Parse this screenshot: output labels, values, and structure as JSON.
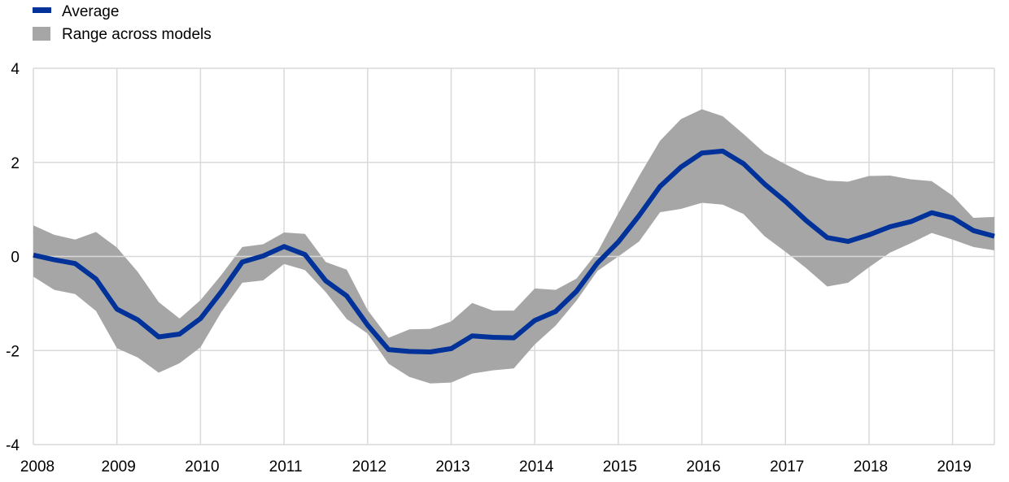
{
  "chart_data": {
    "type": "line",
    "title": "",
    "xlabel": "",
    "ylabel": "",
    "ylim": [
      -4,
      4
    ],
    "xlim": [
      2008,
      2019.5
    ],
    "y_ticks": [
      "4",
      "2",
      "0",
      "-2",
      "-4"
    ],
    "x_ticks": [
      "2008",
      "2009",
      "2010",
      "2011",
      "2012",
      "2013",
      "2014",
      "2015",
      "2016",
      "2017",
      "2018",
      "2019"
    ],
    "grid": "vertical and horizontal",
    "legend_position": "top-left",
    "colors": {
      "average": "#003299",
      "range": "#a6a6a6",
      "grid": "#d9d9d9"
    },
    "legend": [
      {
        "label": "Average",
        "symbol": "line"
      },
      {
        "label": "Range across models",
        "symbol": "square"
      }
    ],
    "x": [
      2008.0,
      2008.25,
      2008.5,
      2008.75,
      2009.0,
      2009.25,
      2009.5,
      2009.75,
      2010.0,
      2010.25,
      2010.5,
      2010.75,
      2011.0,
      2011.25,
      2011.5,
      2011.75,
      2012.0,
      2012.25,
      2012.5,
      2012.75,
      2013.0,
      2013.25,
      2013.5,
      2013.75,
      2014.0,
      2014.25,
      2014.5,
      2014.75,
      2015.0,
      2015.25,
      2015.5,
      2015.75,
      2016.0,
      2016.25,
      2016.5,
      2016.75,
      2017.0,
      2017.25,
      2017.5,
      2017.75,
      2018.0,
      2018.25,
      2018.5,
      2018.75,
      2019.0,
      2019.25,
      2019.5
    ],
    "series": [
      {
        "name": "Average",
        "kind": "line",
        "values": [
          0.03,
          -0.07,
          -0.15,
          -0.48,
          -1.12,
          -1.35,
          -1.71,
          -1.65,
          -1.32,
          -0.75,
          -0.12,
          0.01,
          0.21,
          0.04,
          -0.52,
          -0.84,
          -1.46,
          -1.98,
          -2.02,
          -2.03,
          -1.96,
          -1.69,
          -1.72,
          -1.73,
          -1.36,
          -1.17,
          -0.74,
          -0.14,
          0.31,
          0.87,
          1.49,
          1.9,
          2.2,
          2.24,
          1.97,
          1.54,
          1.17,
          0.76,
          0.4,
          0.32,
          0.46,
          0.63,
          0.74,
          0.93,
          0.82,
          0.55,
          0.43
        ]
      },
      {
        "name": "Range across models",
        "kind": "band",
        "low": [
          -0.43,
          -0.71,
          -0.8,
          -1.16,
          -1.95,
          -2.15,
          -2.47,
          -2.27,
          -1.93,
          -1.18,
          -0.56,
          -0.51,
          -0.16,
          -0.29,
          -0.76,
          -1.33,
          -1.64,
          -2.28,
          -2.56,
          -2.7,
          -2.68,
          -2.49,
          -2.42,
          -2.38,
          -1.87,
          -1.47,
          -0.94,
          -0.31,
          0.0,
          0.32,
          0.94,
          1.01,
          1.14,
          1.1,
          0.9,
          0.43,
          0.1,
          -0.25,
          -0.64,
          -0.56,
          -0.23,
          0.08,
          0.28,
          0.5,
          0.36,
          0.2,
          0.13
        ],
        "high": [
          0.66,
          0.46,
          0.36,
          0.52,
          0.19,
          -0.33,
          -0.97,
          -1.32,
          -0.93,
          -0.39,
          0.2,
          0.26,
          0.51,
          0.48,
          -0.12,
          -0.28,
          -1.14,
          -1.73,
          -1.55,
          -1.54,
          -1.38,
          -0.99,
          -1.15,
          -1.15,
          -0.68,
          -0.71,
          -0.47,
          0.09,
          0.92,
          1.71,
          2.46,
          2.92,
          3.13,
          2.98,
          2.6,
          2.2,
          1.96,
          1.74,
          1.61,
          1.59,
          1.71,
          1.72,
          1.64,
          1.6,
          1.29,
          0.82,
          0.84
        ]
      }
    ]
  }
}
